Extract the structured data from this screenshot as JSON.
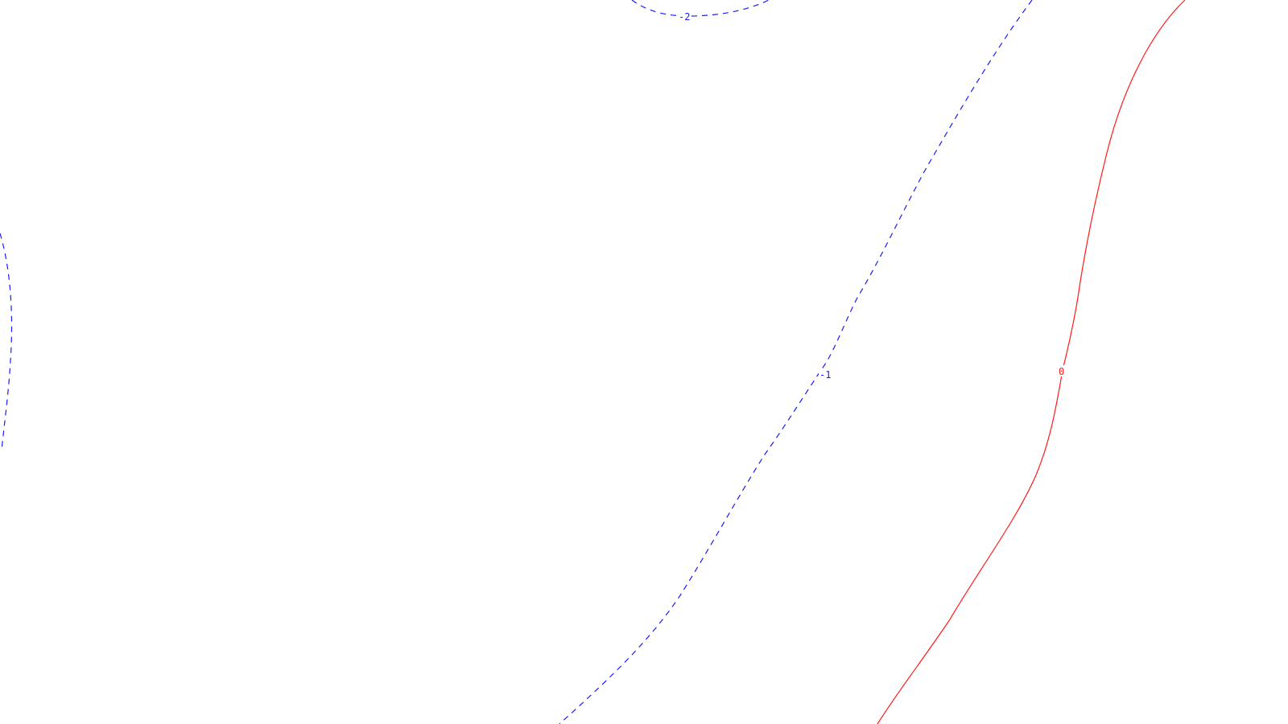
{
  "map": {
    "colors": {
      "negative_contour": "#1a1aff",
      "zero_contour": "#ff1a1a",
      "background": "#ffffff"
    },
    "contours": [
      {
        "id": "c-minus2-top",
        "label": "-2",
        "style": "dashed",
        "color": "#1a1aff"
      },
      {
        "id": "c-left-arc",
        "label": "",
        "style": "dashed",
        "color": "#1a1aff"
      },
      {
        "id": "c-minus1",
        "label": "-1",
        "style": "dashed",
        "color": "#1a1aff"
      },
      {
        "id": "c-zero",
        "label": "0",
        "style": "solid",
        "color": "#ff1a1a"
      }
    ]
  }
}
